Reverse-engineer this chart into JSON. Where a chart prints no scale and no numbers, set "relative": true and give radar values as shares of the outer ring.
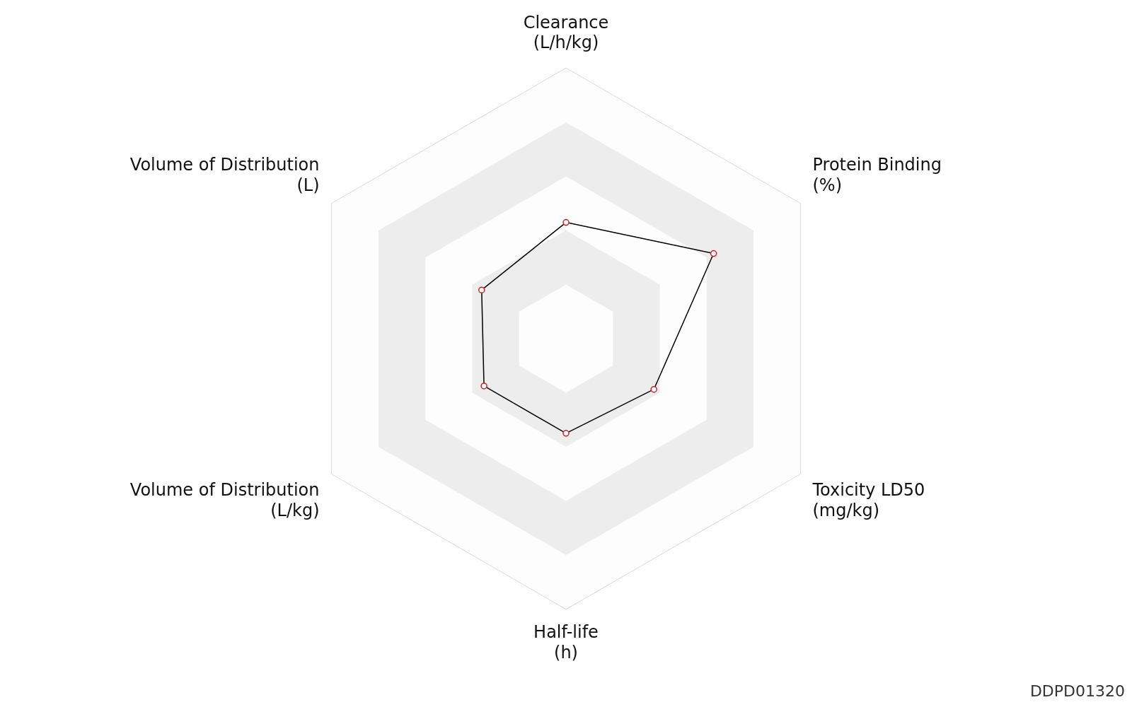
{
  "chart_data": {
    "type": "radar",
    "relative": true,
    "categories": [
      "Clearance\n(L/h/kg)",
      "Protein Binding\n(%)",
      "Toxicity LD50\n(mg/kg)",
      "Half-life\n(h)",
      "Volume of Distribution\n(L/kg)",
      "Volume of Distribution\n(L)"
    ],
    "series": [
      {
        "color": "#000000",
        "values": [
          0.43,
          0.63,
          0.375,
          0.35,
          0.35,
          0.36
        ]
      }
    ],
    "marker": "circle",
    "legend": false,
    "annotations": [
      "DDPD01320"
    ]
  }
}
